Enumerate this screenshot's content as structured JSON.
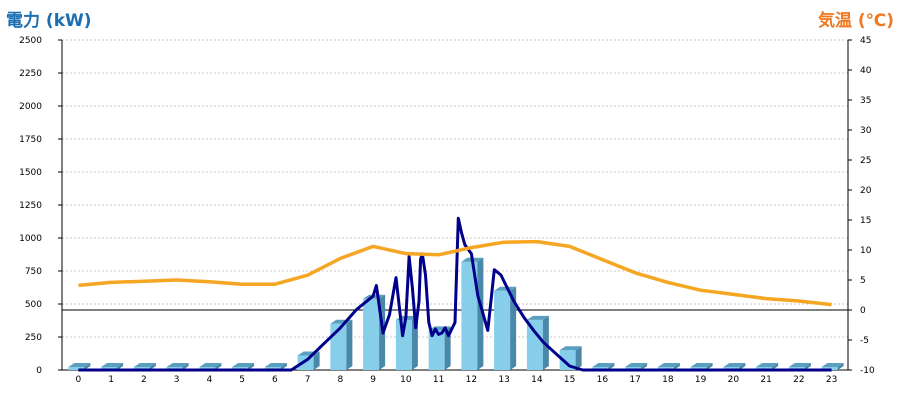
{
  "chart_data": {
    "type": "bar",
    "ylabel_left": "電力 (kW)",
    "ylabel_right": "気温 (℃)",
    "categories": [
      "0",
      "1",
      "2",
      "3",
      "4",
      "5",
      "6",
      "7",
      "8",
      "9",
      "10",
      "11",
      "12",
      "13",
      "14",
      "15",
      "16",
      "17",
      "18",
      "19",
      "20",
      "21",
      "22",
      "23"
    ],
    "left_axis": {
      "ylim": [
        0,
        2500
      ],
      "ticks": [
        "0",
        "250",
        "500",
        "750",
        "1000",
        "1250",
        "1500",
        "1750",
        "2000",
        "2250",
        "2500"
      ]
    },
    "right_axis": {
      "ylim": [
        -10,
        45
      ],
      "ticks": [
        "-10",
        "-5",
        "0",
        "5",
        "10",
        "15",
        "20",
        "25",
        "30",
        "35",
        "40",
        "45"
      ]
    },
    "grid": true,
    "series": [
      {
        "kind": "bar",
        "axis": "left",
        "color": "#87ceeb",
        "values": [
          0,
          0,
          0,
          0,
          0,
          0,
          0,
          110,
          350,
          540,
          380,
          300,
          820,
          600,
          380,
          150,
          0,
          0,
          0,
          0,
          0,
          0,
          0,
          0
        ]
      },
      {
        "kind": "line",
        "axis": "left",
        "color": "#00008b",
        "x": [
          0,
          1,
          2,
          3,
          4,
          5,
          6,
          6.5,
          7,
          7.5,
          8,
          8.5,
          9,
          9.1,
          9.3,
          9.5,
          9.7,
          9.9,
          10.0,
          10.1,
          10.2,
          10.3,
          10.4,
          10.45,
          10.5,
          10.6,
          10.7,
          10.8,
          10.9,
          11.0,
          11.1,
          11.2,
          11.3,
          11.5,
          11.6,
          11.7,
          11.8,
          12.0,
          12.2,
          12.5,
          12.7,
          12.9,
          13.1,
          13.3,
          13.6,
          13.9,
          14.2,
          14.6,
          15.0,
          15.4,
          15.8,
          16,
          17,
          18,
          19,
          20,
          21,
          22,
          23
        ],
        "y": [
          0,
          0,
          0,
          0,
          0,
          0,
          0,
          0,
          80,
          200,
          320,
          460,
          560,
          640,
          280,
          420,
          700,
          260,
          400,
          860,
          620,
          320,
          520,
          840,
          880,
          720,
          360,
          260,
          310,
          270,
          280,
          320,
          260,
          360,
          1150,
          1040,
          950,
          880,
          560,
          300,
          760,
          720,
          620,
          520,
          400,
          300,
          210,
          120,
          30,
          0,
          0,
          0,
          0,
          0,
          0,
          0,
          0,
          0,
          0
        ]
      },
      {
        "kind": "line",
        "axis": "right",
        "color": "#f5a623",
        "x": [
          0,
          1,
          2,
          3,
          4,
          5,
          6,
          7,
          8,
          9,
          10,
          11,
          12,
          13,
          14,
          15,
          16,
          17,
          18,
          19,
          20,
          21,
          22,
          23
        ],
        "y": [
          4.1,
          4.6,
          4.8,
          5.0,
          4.7,
          4.3,
          4.3,
          5.8,
          8.6,
          10.6,
          9.4,
          9.2,
          10.4,
          11.3,
          11.4,
          10.6,
          8.4,
          6.2,
          4.6,
          3.3,
          2.6,
          1.9,
          1.5,
          0.9
        ]
      }
    ],
    "reference_line": {
      "axis": "right",
      "value": 0
    }
  }
}
